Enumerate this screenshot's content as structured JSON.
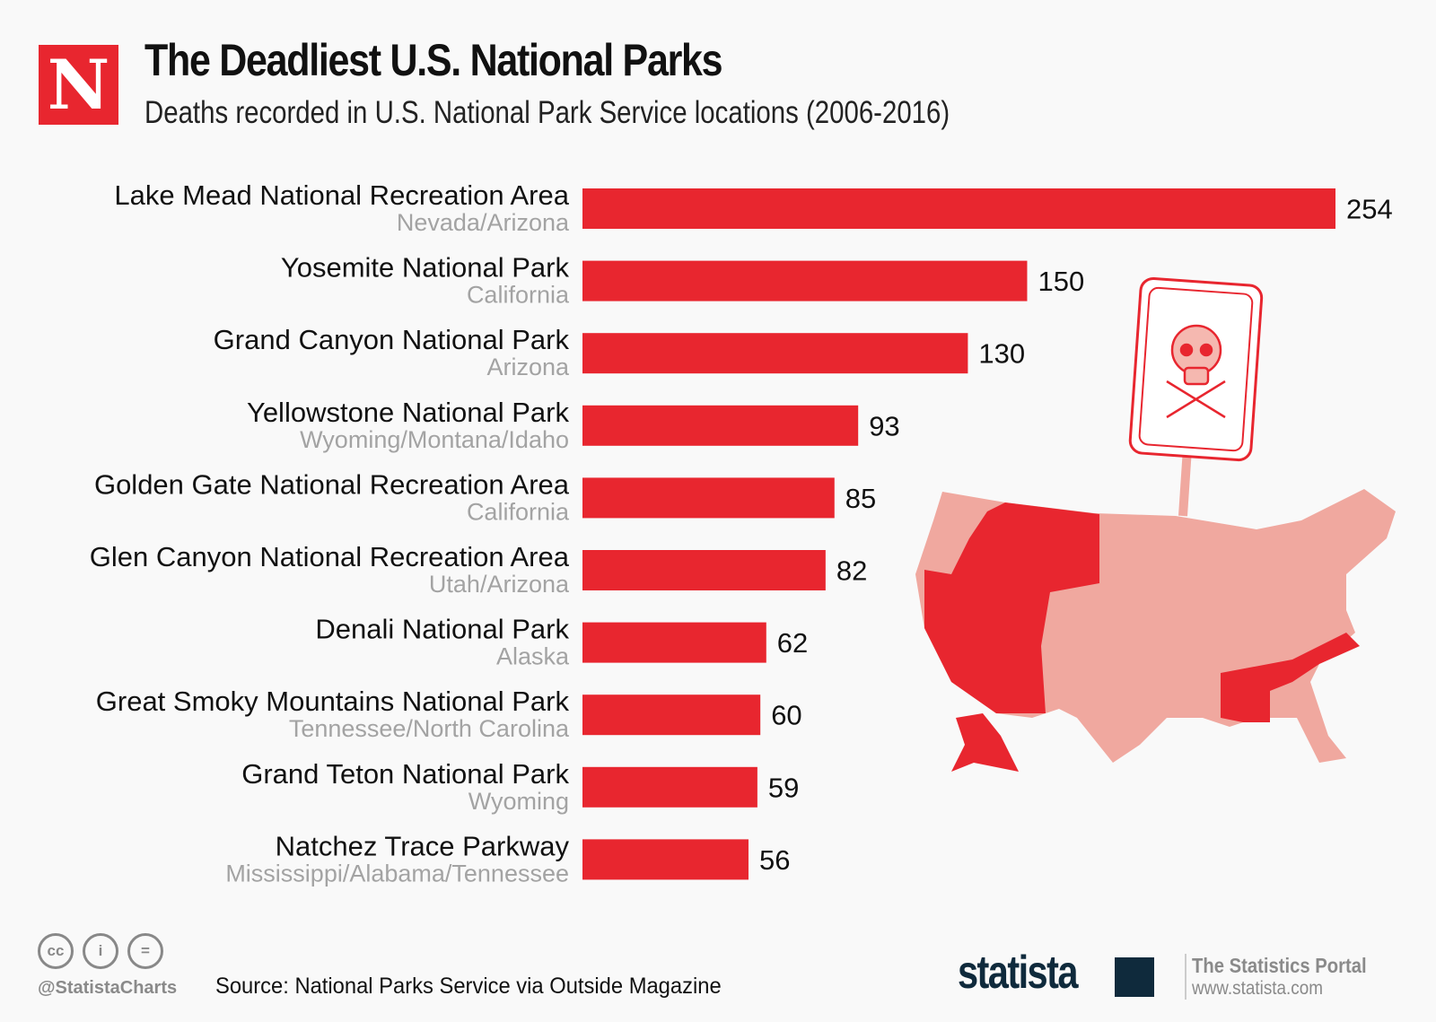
{
  "header": {
    "logo_letter": "N",
    "title": "The Deadliest U.S. National Parks",
    "subtitle": "Deaths recorded in U.S. National Park Service locations (2006-2016)"
  },
  "chart_data": {
    "type": "bar",
    "orientation": "horizontal",
    "title": "The Deadliest U.S. National Parks",
    "subtitle": "Deaths recorded in U.S. National Park Service locations (2006-2016)",
    "categories": [
      "Lake Mead National Recreation Area",
      "Yosemite National Park",
      "Grand Canyon National Park",
      "Yellowstone National Park",
      "Golden Gate National Recreation Area",
      "Glen Canyon National Recreation Area",
      "Denali National Park",
      "Great Smoky Mountains National Park",
      "Grand Teton National Park",
      "Natchez Trace Parkway"
    ],
    "sublabels": [
      "Nevada/Arizona",
      "California",
      "Arizona",
      "Wyoming/Montana/Idaho",
      "California",
      "Utah/Arizona",
      "Alaska",
      "Tennessee/North Carolina",
      "Wyoming",
      "Mississippi/Alabama/Tennessee"
    ],
    "values": [
      254,
      150,
      130,
      93,
      85,
      82,
      62,
      60,
      59,
      56
    ],
    "xlim": [
      0,
      254
    ],
    "grid": false,
    "bar_color": "#e8262f",
    "data_labels": true
  },
  "decoration": {
    "icon": "skull-crossbones-sign-icon",
    "map": "us-map-highlighted-states"
  },
  "footer": {
    "handle": "@StatistaCharts",
    "source": "Source: National Parks Service via Outside Magazine",
    "brand": "statista",
    "portal_title": "The Statistics Portal",
    "portal_url": "www.statista.com",
    "cc_icons": [
      "cc",
      "by",
      "nd"
    ]
  }
}
